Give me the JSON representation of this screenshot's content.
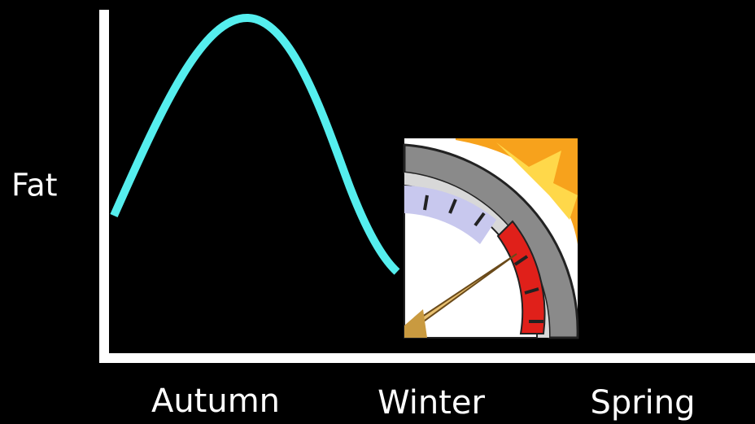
{
  "axis_label": "Fat",
  "seasons": [
    "Autumn",
    "Winter",
    "Spring"
  ]
}
